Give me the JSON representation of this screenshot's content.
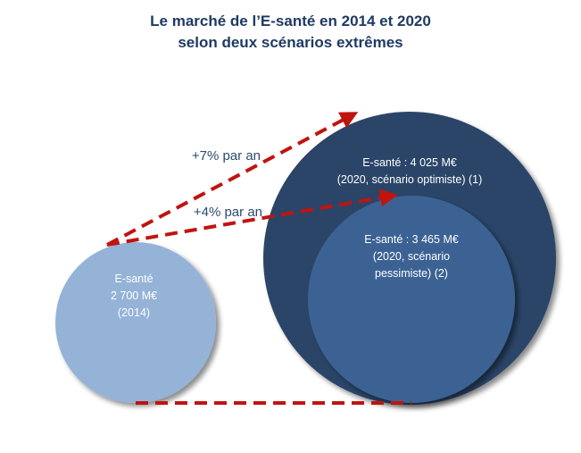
{
  "title_line1": "Le marché de l’E-santé en 2014 et 2020",
  "title_line2": "selon deux scénarios extrêmes",
  "colors": {
    "optimiste": "#2b4467",
    "pessimiste": "#3a6293",
    "base_2014": "#94b3d7",
    "arrows": "#c0140f",
    "title": "#1f3a63"
  },
  "chart_data": {
    "type": "bubble",
    "unit": "M€",
    "bubbles": [
      {
        "key": "base",
        "value": 2700,
        "year": 2014,
        "lines": [
          "E-santé",
          "2 700 M€",
          "(2014)"
        ]
      },
      {
        "key": "optimiste",
        "value": 4025,
        "year": 2020,
        "lines": [
          "E-santé : 4 025 M€",
          "(2020, scénario optimiste) (1)"
        ]
      },
      {
        "key": "pessimiste",
        "value": 3465,
        "year": 2020,
        "lines": [
          "E-santé : 3 465 M€",
          "(2020, scénario",
          "pessimiste) (2)"
        ]
      }
    ],
    "growth": [
      {
        "label": "+7% par an",
        "rate_pct": 7,
        "to": "optimiste"
      },
      {
        "label": "+4% par an",
        "rate_pct": 4,
        "to": "pessimiste"
      }
    ]
  }
}
